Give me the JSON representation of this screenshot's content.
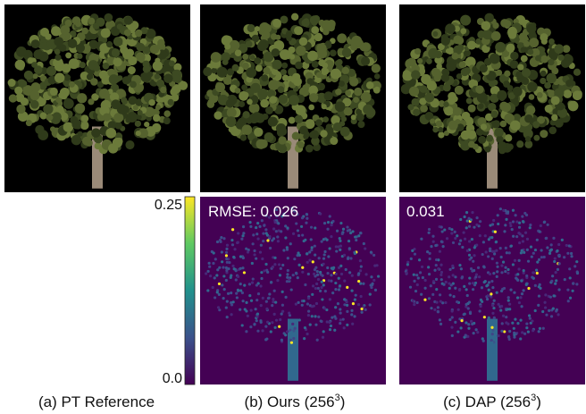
{
  "panels": [
    {
      "caption": {
        "text": "(a) PT Reference"
      }
    },
    {
      "caption": {
        "text": "(b) Ours (256",
        "sup": "3",
        "end": ")"
      },
      "error": "RMSE: 0.026"
    },
    {
      "caption": {
        "text": "(c) DAP (256",
        "sup": "3",
        "end": ")"
      },
      "error": "0.031"
    }
  ],
  "colorbar": {
    "top": "0.25",
    "bottom": "0.0"
  }
}
